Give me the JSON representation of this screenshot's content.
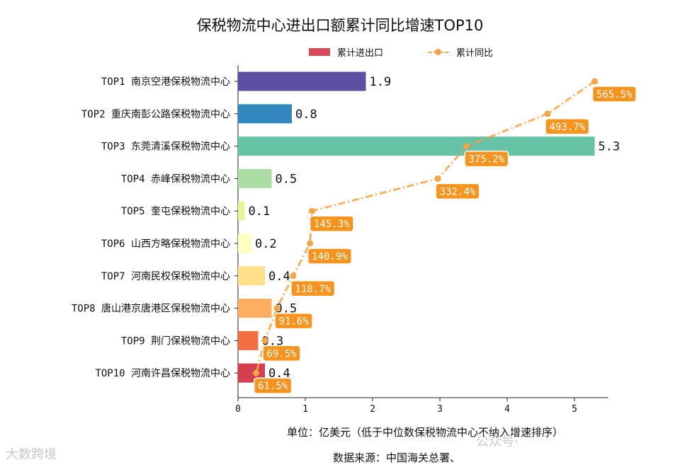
{
  "chart_data": {
    "type": "bar",
    "title": "保税物流中心进出口额累计同比增速TOP10",
    "categories": [
      "TOP1 南京空港保税物流中心",
      "TOP2 重庆南彭公路保税物流中心",
      "TOP3 东莞清溪保税物流中心",
      "TOP4 赤峰保税物流中心",
      "TOP5 奎屯保税物流中心",
      "TOP6 山西方略保税物流中心",
      "TOP7 河南民权保税物流中心",
      "TOP8 唐山港京唐港区保税物流中心",
      "TOP9 荆门保税物流中心",
      "TOP10 河南许昌保税物流中心"
    ],
    "values": [
      1.9,
      0.8,
      5.3,
      0.5,
      0.1,
      0.2,
      0.4,
      0.5,
      0.3,
      0.4
    ],
    "value_labels": [
      "1.9",
      "0.8",
      "5.3",
      "0.5",
      "0.1",
      "0.2",
      "0.4",
      "0.5",
      "0.3",
      "0.4"
    ],
    "bar_colors": [
      "#5e4fa2",
      "#3288bd",
      "#66c2a5",
      "#abdda4",
      "#e6f598",
      "#ffffbf",
      "#fee08b",
      "#fdae61",
      "#f46d43",
      "#d53e4f"
    ],
    "line_series": {
      "name": "累计同比",
      "values_pct": [
        565.5,
        493.7,
        375.2,
        332.4,
        145.3,
        140.9,
        118.7,
        91.6,
        69.5,
        61.5
      ],
      "labels": [
        "565.5%",
        "493.7%",
        "375.2%",
        "332.4%",
        "145.3%",
        "140.9%",
        "118.7%",
        "91.6%",
        "69.5%",
        "61.5%"
      ],
      "x_positions": [
        5.3,
        4.6,
        3.4,
        2.97,
        1.1,
        1.07,
        0.82,
        0.58,
        0.4,
        0.27
      ],
      "color": "#f4a545",
      "label_bg": "#f7941d"
    },
    "legend": [
      "累计进出口",
      "累计同比"
    ],
    "legend_position": "top-center",
    "xlim": [
      0,
      5.5
    ],
    "xticks": [
      0,
      1,
      2,
      3,
      4,
      5
    ],
    "xlabel": "单位：亿美元（低于中位数保税物流中心不纳入增速排序）",
    "grid": false
  },
  "footer": {
    "source": "数据来源：中国海关总署、"
  },
  "watermarks": {
    "left": "大数跨境",
    "right": "公众号·"
  }
}
